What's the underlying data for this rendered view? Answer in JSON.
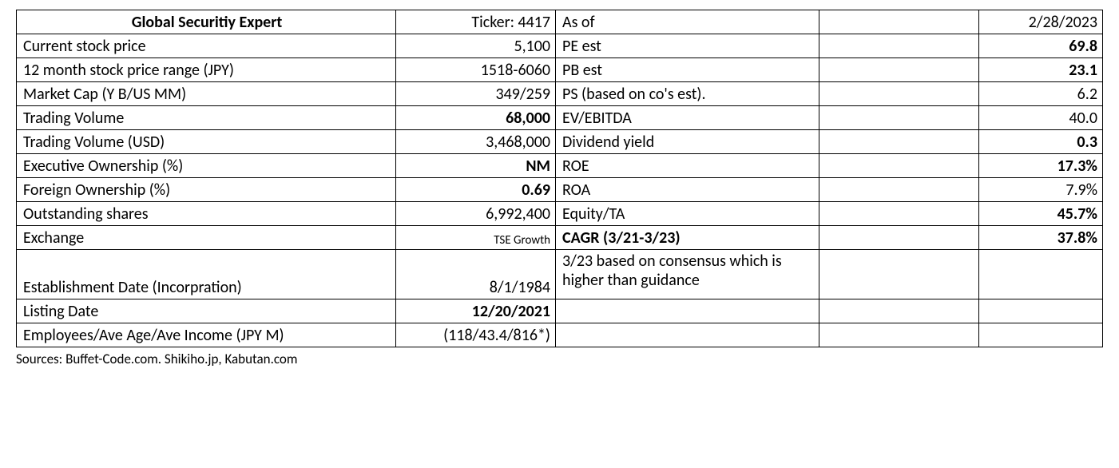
{
  "header": {
    "company": "Global Securitiy Expert",
    "ticker": "Ticker: 4417",
    "asof_label": "As of",
    "asof_date": "2/28/2023"
  },
  "rows": [
    {
      "l1": "Current stock price",
      "v1": "5,100",
      "v1_bold": false,
      "l2": "PE est",
      "l2_bold": false,
      "v2": "69.8",
      "v2_bold": true
    },
    {
      "l1": "12 month stock price range (JPY)",
      "v1": "1518-6060",
      "v1_bold": false,
      "l2": "PB est",
      "l2_bold": false,
      "v2": "23.1",
      "v2_bold": true
    },
    {
      "l1": "Market Cap (Y B/US MM)",
      "v1": "349/259",
      "v1_bold": false,
      "l2": "PS (based on co's est).",
      "l2_bold": false,
      "v2": "6.2",
      "v2_bold": false
    },
    {
      "l1": "Trading Volume",
      "v1": "68,000",
      "v1_bold": true,
      "l2": "EV/EBITDA",
      "l2_bold": false,
      "v2": "40.0",
      "v2_bold": false
    },
    {
      "l1": "Trading Volume (USD)",
      "v1": "3,468,000",
      "v1_bold": false,
      "l2": "Dividend yield",
      "l2_bold": false,
      "v2": "0.3",
      "v2_bold": true
    },
    {
      "l1": "Executive Ownership (%)",
      "v1": "NM",
      "v1_bold": true,
      "l2": "ROE",
      "l2_bold": false,
      "v2": "17.3%",
      "v2_bold": true
    },
    {
      "l1": "Foreign Ownership (%)",
      "v1": "0.69",
      "v1_bold": true,
      "l2": "ROA",
      "l2_bold": false,
      "v2": "7.9%",
      "v2_bold": false
    },
    {
      "l1": "Outstanding shares",
      "v1": "6,992,400",
      "v1_bold": false,
      "l2": "Equity/TA",
      "l2_bold": false,
      "v2": "45.7%",
      "v2_bold": true
    },
    {
      "l1": "Exchange",
      "v1": "TSE Growth",
      "v1_bold": false,
      "v1_small": true,
      "l2": "CAGR (3/21-3/23)",
      "l2_bold": true,
      "v2": "37.8%",
      "v2_bold": true
    }
  ],
  "tall": {
    "l1": "Establishment Date (Incorpration)",
    "v1": "8/1/1984",
    "note": "3/23 based on consensus which is higher than guidance"
  },
  "extra": [
    {
      "l1": "Listing Date",
      "v1": "12/20/2021",
      "v1_bold": true
    },
    {
      "l1": "Employees/Ave Age/Ave Income (JPY M)",
      "v1": "(118/43.4/816*)",
      "v1_bold": false
    }
  ],
  "sources": "Sources: Buffet-Code.com. Shikiho.jp, Kabutan.com"
}
